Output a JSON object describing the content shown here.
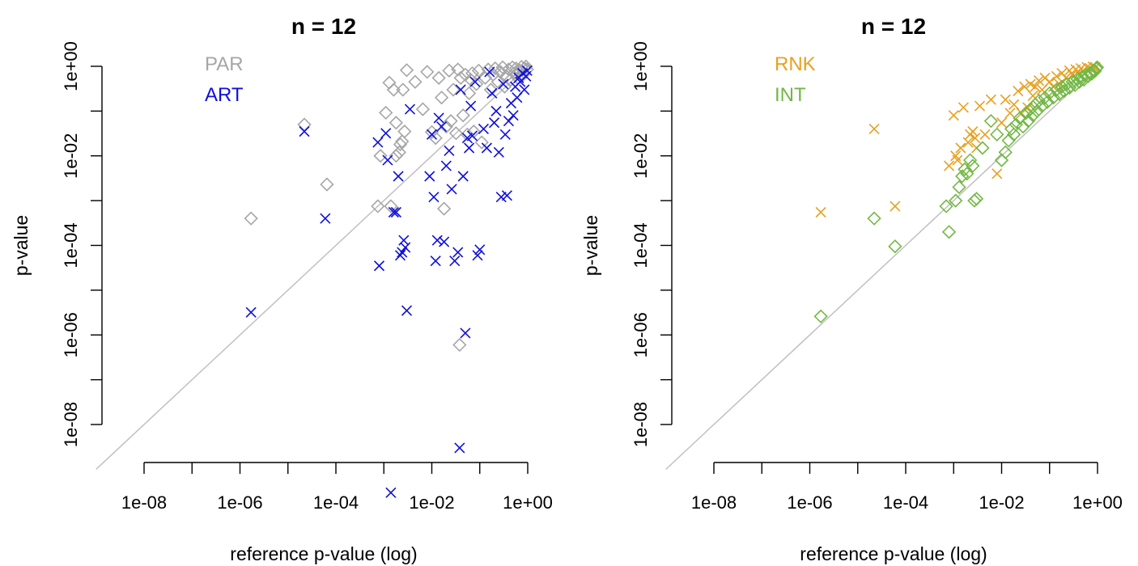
{
  "chart_data": [
    {
      "type": "scatter",
      "title": "n = 12",
      "xlabel": "reference p-value (log)",
      "ylabel": "p-value",
      "x_scale": "log10",
      "y_scale": "log10",
      "x_ticks": [
        "1e-08",
        "1e-06",
        "1e-04",
        "1e-02",
        "1e+00"
      ],
      "y_ticks": [
        "1e-08",
        "1e-06",
        "1e-04",
        "1e-02",
        "1e+00"
      ],
      "xlim": [
        "1e-09",
        "1e+00"
      ],
      "ylim": [
        "3e-10",
        "1e+00"
      ],
      "reference_line": "y = x",
      "legend_position": "top-left",
      "series": [
        {
          "name": "PAR",
          "color": "#a6a6a6",
          "marker": "diamond",
          "points": [
            [
              1.7e-06,
              0.0004
            ],
            [
              2.2e-05,
              0.05
            ],
            [
              6.5e-05,
              0.0023
            ],
            [
              0.00075,
              0.00075
            ],
            [
              0.00085,
              0.01
            ],
            [
              0.0011,
              0.092
            ],
            [
              0.0013,
              0.43
            ],
            [
              0.0014,
              0.00075
            ],
            [
              0.0016,
              0.3
            ],
            [
              0.0018,
              0.01
            ],
            [
              0.0018,
              0.055
            ],
            [
              0.0021,
              0.012
            ],
            [
              0.0022,
              0.018
            ],
            [
              0.0024,
              0.021
            ],
            [
              0.0025,
              0.3
            ],
            [
              0.0027,
              0.035
            ],
            [
              0.003,
              0.82
            ],
            [
              0.0045,
              0.45
            ],
            [
              0.0065,
              0.11
            ],
            [
              0.008,
              0.75
            ],
            [
              0.01,
              0.034
            ],
            [
              0.012,
              0.025
            ],
            [
              0.014,
              0.55
            ],
            [
              0.016,
              0.2
            ],
            [
              0.018,
              0.00066
            ],
            [
              0.02,
              0.045
            ],
            [
              0.023,
              0.8
            ],
            [
              0.025,
              0.06
            ],
            [
              0.028,
              0.3
            ],
            [
              0.032,
              0.032
            ],
            [
              0.035,
              0.85
            ],
            [
              0.038,
              6e-07
            ],
            [
              0.04,
              0.55
            ],
            [
              0.045,
              0.08
            ],
            [
              0.05,
              0.65
            ],
            [
              0.055,
              0.03
            ],
            [
              0.06,
              0.25
            ],
            [
              0.065,
              0.5
            ],
            [
              0.07,
              0.7
            ],
            [
              0.075,
              0.035
            ],
            [
              0.085,
              0.4
            ],
            [
              0.095,
              0.8
            ],
            [
              0.11,
              0.02
            ],
            [
              0.13,
              0.55
            ],
            [
              0.15,
              0.85
            ],
            [
              0.17,
              0.3
            ],
            [
              0.19,
              0.65
            ],
            [
              0.21,
              0.9
            ],
            [
              0.24,
              0.45
            ],
            [
              0.27,
              0.75
            ],
            [
              0.3,
              0.95
            ],
            [
              0.33,
              0.35
            ],
            [
              0.36,
              0.6
            ],
            [
              0.4,
              0.85
            ],
            [
              0.44,
              0.5
            ],
            [
              0.48,
              0.95
            ],
            [
              0.52,
              0.7
            ],
            [
              0.57,
              0.9
            ],
            [
              0.62,
              0.55
            ],
            [
              0.68,
              0.8
            ],
            [
              0.74,
              0.97
            ],
            [
              0.8,
              0.65
            ],
            [
              0.86,
              0.9
            ],
            [
              0.92,
              0.99
            ],
            [
              0.97,
              0.85
            ]
          ]
        },
        {
          "name": "ART",
          "color": "#1010dc",
          "marker": "cross",
          "points": [
            [
              1.7e-06,
              3.2e-06
            ],
            [
              6e-05,
              0.0004
            ],
            [
              2.2e-05,
              0.035
            ],
            [
              0.0008,
              3.5e-05
            ],
            [
              0.00075,
              0.02
            ],
            [
              0.0011,
              0.032
            ],
            [
              0.0012,
              0.008
            ],
            [
              0.0016,
              0.00055
            ],
            [
              0.0018,
              0.00055
            ],
            [
              0.0014,
              3e-10
            ],
            [
              0.002,
              0.0035
            ],
            [
              0.0022,
              6e-05
            ],
            [
              0.0024,
              7e-05
            ],
            [
              0.0026,
              0.00013
            ],
            [
              0.0028,
              9e-05
            ],
            [
              0.003,
              3.5e-06
            ],
            [
              0.0035,
              0.11
            ],
            [
              0.009,
              0.0035
            ],
            [
              0.01,
              0.03
            ],
            [
              0.011,
              0.0012
            ],
            [
              0.012,
              4.5e-05
            ],
            [
              0.013,
              0.00013
            ],
            [
              0.014,
              0.07
            ],
            [
              0.016,
              0.045
            ],
            [
              0.018,
              0.00012
            ],
            [
              0.02,
              0.006
            ],
            [
              0.023,
              0.013
            ],
            [
              0.026,
              0.0018
            ],
            [
              0.03,
              4.5e-05
            ],
            [
              0.035,
              7e-05
            ],
            [
              0.038,
              3e-09
            ],
            [
              0.04,
              0.3
            ],
            [
              0.045,
              0.0035
            ],
            [
              0.05,
              1.1e-06
            ],
            [
              0.055,
              0.025
            ],
            [
              0.06,
              0.015
            ],
            [
              0.065,
              0.13
            ],
            [
              0.07,
              0.028
            ],
            [
              0.08,
              0.45
            ],
            [
              0.09,
              6e-05
            ],
            [
              0.1,
              8e-05
            ],
            [
              0.12,
              0.04
            ],
            [
              0.14,
              0.015
            ],
            [
              0.16,
              0.75
            ],
            [
              0.18,
              0.25
            ],
            [
              0.2,
              0.055
            ],
            [
              0.22,
              0.1
            ],
            [
              0.25,
              0.012
            ],
            [
              0.28,
              0.0012
            ],
            [
              0.31,
              0.4
            ],
            [
              0.34,
              0.03
            ],
            [
              0.37,
              0.0013
            ],
            [
              0.4,
              0.06
            ],
            [
              0.45,
              0.15
            ],
            [
              0.5,
              0.08
            ],
            [
              0.55,
              0.35
            ],
            [
              0.6,
              0.2
            ],
            [
              0.65,
              0.55
            ],
            [
              0.7,
              0.45
            ],
            [
              0.78,
              0.7
            ],
            [
              0.85,
              0.3
            ],
            [
              0.92,
              0.6
            ],
            [
              0.97,
              0.8
            ]
          ]
        }
      ]
    },
    {
      "type": "scatter",
      "title": "n = 12",
      "xlabel": "reference p-value (log)",
      "ylabel": "p-value",
      "x_scale": "log10",
      "y_scale": "log10",
      "x_ticks": [
        "1e-08",
        "1e-06",
        "1e-04",
        "1e-02",
        "1e+00"
      ],
      "y_ticks": [
        "1e-08",
        "1e-06",
        "1e-04",
        "1e-02",
        "1e+00"
      ],
      "xlim": [
        "1e-09",
        "1e+00"
      ],
      "ylim": [
        "3e-10",
        "1e+00"
      ],
      "reference_line": "y = x",
      "legend_position": "top-left",
      "series": [
        {
          "name": "RNK",
          "color": "#e8a020",
          "marker": "cross",
          "points": [
            [
              1.7e-06,
              0.00055
            ],
            [
              6e-05,
              0.00075
            ],
            [
              2.2e-05,
              0.04
            ],
            [
              0.0008,
              0.006
            ],
            [
              0.001,
              0.08
            ],
            [
              0.0011,
              0.01
            ],
            [
              0.0012,
              0.008
            ],
            [
              0.0014,
              0.015
            ],
            [
              0.0016,
              0.12
            ],
            [
              0.002,
              0.02
            ],
            [
              0.0022,
              0.03
            ],
            [
              0.0025,
              0.035
            ],
            [
              0.0028,
              0.025
            ],
            [
              0.003,
              0.015
            ],
            [
              0.0035,
              0.13
            ],
            [
              0.0045,
              0.03
            ],
            [
              0.006,
              0.18
            ],
            [
              0.008,
              0.004
            ],
            [
              0.01,
              0.055
            ],
            [
              0.012,
              0.18
            ],
            [
              0.015,
              0.09
            ],
            [
              0.018,
              0.14
            ],
            [
              0.022,
              0.28
            ],
            [
              0.026,
              0.09
            ],
            [
              0.03,
              0.35
            ],
            [
              0.035,
              0.12
            ],
            [
              0.04,
              0.4
            ],
            [
              0.045,
              0.22
            ],
            [
              0.05,
              0.35
            ],
            [
              0.06,
              0.48
            ],
            [
              0.07,
              0.3
            ],
            [
              0.08,
              0.55
            ],
            [
              0.1,
              0.45
            ],
            [
              0.12,
              0.35
            ],
            [
              0.14,
              0.6
            ],
            [
              0.16,
              0.4
            ],
            [
              0.18,
              0.7
            ],
            [
              0.22,
              0.55
            ],
            [
              0.26,
              0.8
            ],
            [
              0.3,
              0.65
            ],
            [
              0.35,
              0.85
            ],
            [
              0.4,
              0.75
            ],
            [
              0.45,
              0.9
            ],
            [
              0.5,
              0.8
            ],
            [
              0.6,
              0.95
            ],
            [
              0.7,
              0.9
            ],
            [
              0.8,
              0.98
            ],
            [
              0.9,
              0.95
            ]
          ]
        },
        {
          "name": "INT",
          "color": "#72b844",
          "marker": "diamond",
          "points": [
            [
              1.7e-06,
              2.6e-06
            ],
            [
              6e-05,
              9.5e-05
            ],
            [
              2.2e-05,
              0.0004
            ],
            [
              0.0007,
              0.00075
            ],
            [
              0.0008,
              0.0002
            ],
            [
              0.0011,
              0.001
            ],
            [
              0.0013,
              0.002
            ],
            [
              0.0015,
              0.0035
            ],
            [
              0.0017,
              0.005
            ],
            [
              0.0019,
              0.004
            ],
            [
              0.0022,
              0.008
            ],
            [
              0.0025,
              0.006
            ],
            [
              0.0027,
              0.001
            ],
            [
              0.003,
              0.0011
            ],
            [
              0.004,
              0.015
            ],
            [
              0.006,
              0.06
            ],
            [
              0.008,
              0.03
            ],
            [
              0.01,
              0.008
            ],
            [
              0.012,
              0.012
            ],
            [
              0.014,
              0.022
            ],
            [
              0.016,
              0.04
            ],
            [
              0.018,
              0.03
            ],
            [
              0.02,
              0.05
            ],
            [
              0.024,
              0.07
            ],
            [
              0.028,
              0.045
            ],
            [
              0.032,
              0.09
            ],
            [
              0.036,
              0.06
            ],
            [
              0.04,
              0.11
            ],
            [
              0.045,
              0.08
            ],
            [
              0.05,
              0.14
            ],
            [
              0.055,
              0.1
            ],
            [
              0.06,
              0.17
            ],
            [
              0.07,
              0.13
            ],
            [
              0.08,
              0.2
            ],
            [
              0.09,
              0.16
            ],
            [
              0.1,
              0.25
            ],
            [
              0.12,
              0.2
            ],
            [
              0.14,
              0.3
            ],
            [
              0.16,
              0.24
            ],
            [
              0.18,
              0.35
            ],
            [
              0.2,
              0.28
            ],
            [
              0.23,
              0.4
            ],
            [
              0.26,
              0.33
            ],
            [
              0.3,
              0.45
            ],
            [
              0.34,
              0.38
            ],
            [
              0.38,
              0.52
            ],
            [
              0.42,
              0.45
            ],
            [
              0.47,
              0.58
            ],
            [
              0.52,
              0.5
            ],
            [
              0.58,
              0.65
            ],
            [
              0.64,
              0.6
            ],
            [
              0.7,
              0.72
            ],
            [
              0.76,
              0.68
            ],
            [
              0.82,
              0.8
            ],
            [
              0.88,
              0.78
            ],
            [
              0.94,
              0.9
            ],
            [
              0.98,
              0.95
            ]
          ]
        }
      ]
    }
  ]
}
